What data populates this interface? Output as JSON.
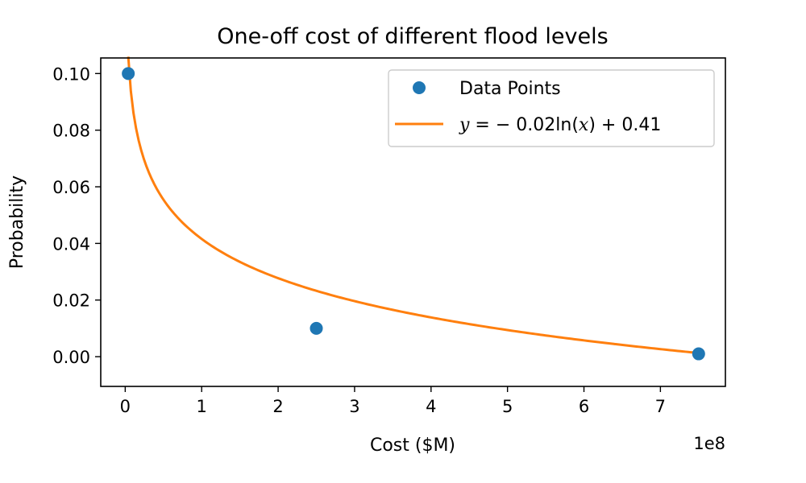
{
  "chart_data": {
    "type": "scatter",
    "title": "One-off cost of different flood levels",
    "xlabel": "Cost ($M)",
    "ylabel": "Probability",
    "x_offset_label": "1e8",
    "xlim": [
      -32000000.0,
      785000000.0
    ],
    "ylim": [
      -0.0105,
      0.1055
    ],
    "xticks": [
      0,
      1,
      2,
      3,
      4,
      5,
      6,
      7
    ],
    "xtick_labels": [
      "0",
      "1",
      "2",
      "3",
      "4",
      "5",
      "6",
      "7"
    ],
    "yticks": [
      0.0,
      0.02,
      0.04,
      0.06,
      0.08,
      0.1
    ],
    "ytick_labels": [
      "0.00",
      "0.02",
      "0.04",
      "0.06",
      "0.08",
      "0.10"
    ],
    "grid": false,
    "legend_position": "top-right",
    "series": [
      {
        "name": "Data Points",
        "kind": "scatter",
        "color": "#1f77b4",
        "x": [
          4000000,
          250000000,
          750000000
        ],
        "y": [
          0.1,
          0.01,
          0.001
        ]
      },
      {
        "name": "y = −0.02ln(x) + 0.41",
        "kind": "line",
        "color": "#ff7f0e",
        "x_range": [
          4000000,
          750000000
        ]
      }
    ]
  }
}
